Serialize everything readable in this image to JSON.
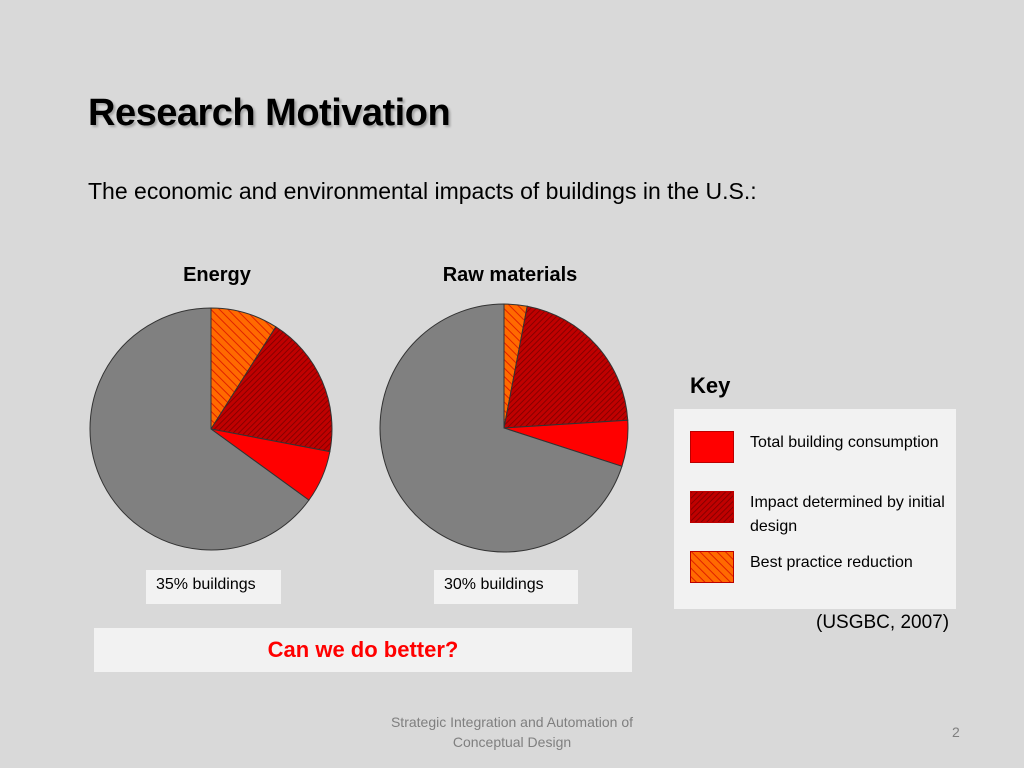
{
  "slide": {
    "title": "Research Motivation",
    "subtitle": "The economic and environmental impacts of buildings in the U.S.:",
    "question": "Can we do better?",
    "citation": "(USGBC, 2007)",
    "footer_line1": "Strategic Integration and Automation of",
    "footer_line2": "Conceptual Design",
    "page_number": "2"
  },
  "key": {
    "heading": "Key",
    "items": [
      {
        "label": "Total building consumption",
        "pattern": "solid-red"
      },
      {
        "label": "Impact determined by initial design",
        "pattern": "dark-red-hatch"
      },
      {
        "label": "Best practice reduction",
        "pattern": "orange-hatch"
      }
    ]
  },
  "colors": {
    "background": "#d9d9d9",
    "other": "#808080",
    "total_building": "#ff0000",
    "initial_design": "#c00000",
    "best_practice": "#ff5a00",
    "question": "#ff0000"
  },
  "chart_data": [
    {
      "type": "pie",
      "title": "Energy",
      "caption": "35% buildings",
      "slices": [
        {
          "name": "Best practice reduction",
          "value": 9
        },
        {
          "name": "Impact determined by initial design",
          "value": 19
        },
        {
          "name": "Total building consumption",
          "value": 7
        },
        {
          "name": "Other",
          "value": 65
        }
      ]
    },
    {
      "type": "pie",
      "title": "Raw materials",
      "caption": "30% buildings",
      "slices": [
        {
          "name": "Best practice reduction",
          "value": 3
        },
        {
          "name": "Impact determined by initial design",
          "value": 21
        },
        {
          "name": "Total building consumption",
          "value": 6
        },
        {
          "name": "Other",
          "value": 70
        }
      ]
    }
  ]
}
